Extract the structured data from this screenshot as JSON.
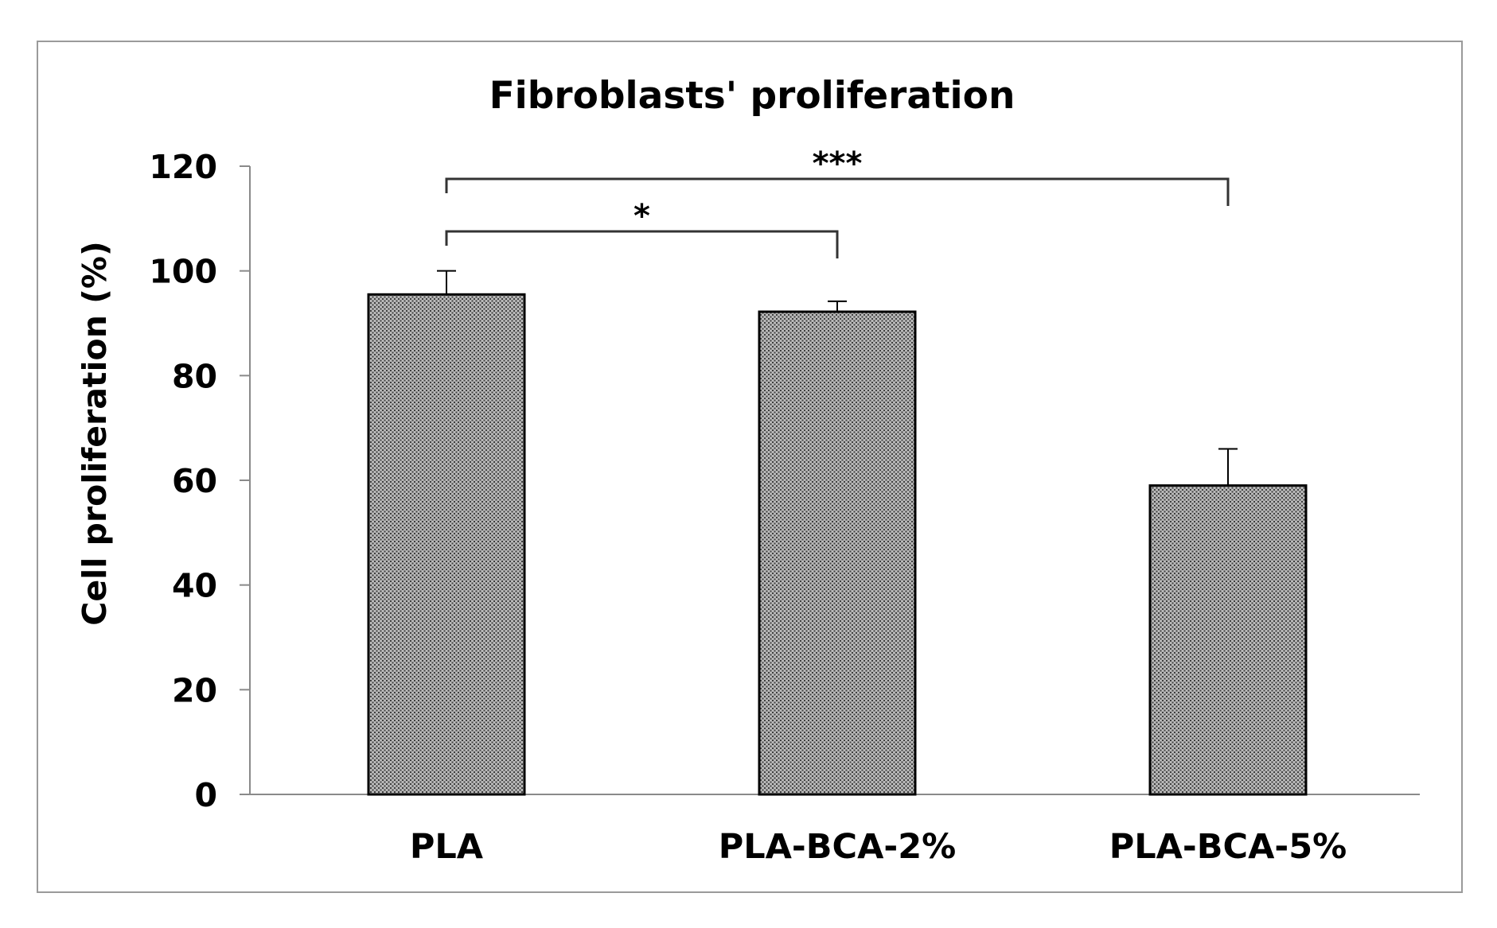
{
  "chart_data": {
    "type": "bar",
    "title": "Fibroblasts' proliferation",
    "xlabel": "",
    "ylabel": "Cell proliferation (%)",
    "categories": [
      "PLA",
      "PLA-BCA-2%",
      "PLA-BCA-5%"
    ],
    "values": [
      95.5,
      92.2,
      59.0
    ],
    "error": [
      4.5,
      2.0,
      7.0
    ],
    "ylim": [
      0,
      120
    ],
    "yticks": [
      0,
      20,
      40,
      60,
      80,
      100,
      120
    ],
    "grid": false,
    "legend": "none",
    "bar_color": "#9c9c9c",
    "significance": [
      {
        "from": "PLA",
        "to": "PLA-BCA-2%",
        "label": "*"
      },
      {
        "from": "PLA",
        "to": "PLA-BCA-5%",
        "label": "***"
      }
    ]
  }
}
